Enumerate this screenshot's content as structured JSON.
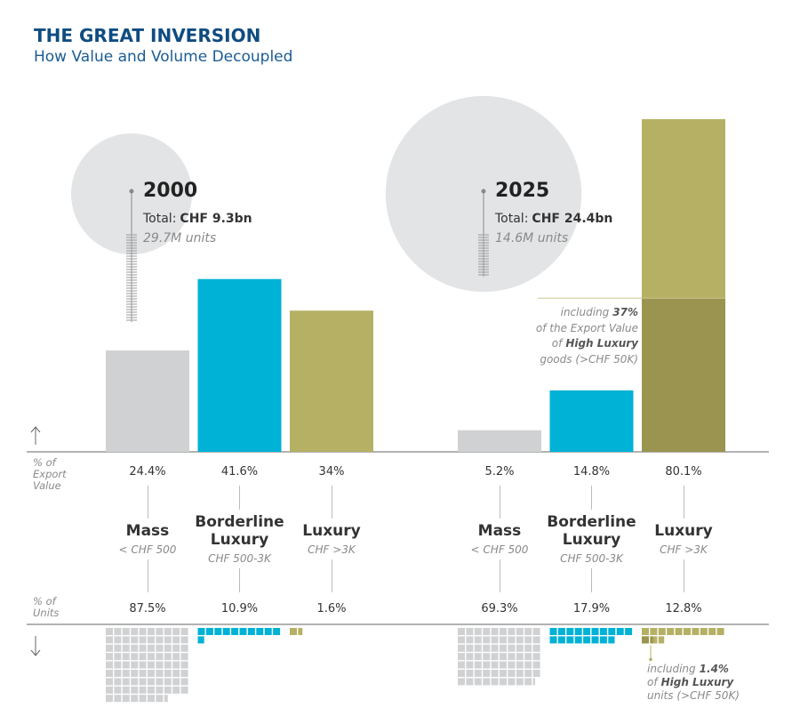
{
  "header": {
    "title": "THE GREAT INVERSION",
    "subtitle": "How Value and Volume Decoupled"
  },
  "axis_labels": {
    "value": "% of Export Value",
    "units": "% of Units"
  },
  "chart_data": [
    {
      "type": "bar",
      "year": "2000",
      "total_prefix": "Total:",
      "total_value": 9.3,
      "total_value_label": "CHF 9.3bn",
      "units": 29.7,
      "units_label": "29.7M units",
      "categories": [
        "Mass",
        "Borderline Luxury",
        "Luxury"
      ],
      "category_ranges": [
        "< CHF 500",
        "CHF 500-3K",
        "CHF >3K"
      ],
      "colors": [
        "#d0d1d3",
        "#00b2d6",
        "#b5b064"
      ],
      "bubble_color": "#e3e4e6",
      "series": [
        {
          "values": [
            24.4,
            41.6,
            34
          ],
          "value_labels": [
            "24.4%",
            "41.6%",
            "34%"
          ]
        },
        {
          "values": [
            87.5,
            10.9,
            1.6
          ],
          "value_labels": [
            "87.5%",
            "10.9%",
            "1.6%"
          ]
        }
      ]
    },
    {
      "type": "bar",
      "year": "2025",
      "total_prefix": "Total:",
      "total_value": 24.4,
      "total_value_label": "CHF 24.4bn",
      "units": 14.6,
      "units_label": "14.6M units",
      "categories": [
        "Mass",
        "Borderline Luxury",
        "Luxury"
      ],
      "category_ranges": [
        "< CHF 500",
        "CHF 500-3K",
        "CHF >3K"
      ],
      "colors": [
        "#d0d1d3",
        "#00b2d6",
        "#b5b064"
      ],
      "bubble_color": "#e3e4e6",
      "series": [
        {
          "values": [
            5.2,
            14.8,
            80.1
          ],
          "value_labels": [
            "5.2%",
            "14.8%",
            "80.1%"
          ]
        },
        {
          "values": [
            69.3,
            17.9,
            12.8
          ],
          "value_labels": [
            "69.3%",
            "17.9%",
            "12.8%"
          ]
        }
      ],
      "high_luxury_color": "#9a9450",
      "high_luxury_value": {
        "value": 37,
        "label": "37%",
        "text": [
          "including",
          "of the Export Value",
          "of",
          "High Luxury",
          "goods (>CHF 50K)"
        ]
      },
      "high_luxury_units": {
        "value": 1.4,
        "label": "1.4%",
        "text": [
          "including",
          "of",
          "High Luxury",
          "units (>CHF 50K)"
        ]
      }
    }
  ]
}
